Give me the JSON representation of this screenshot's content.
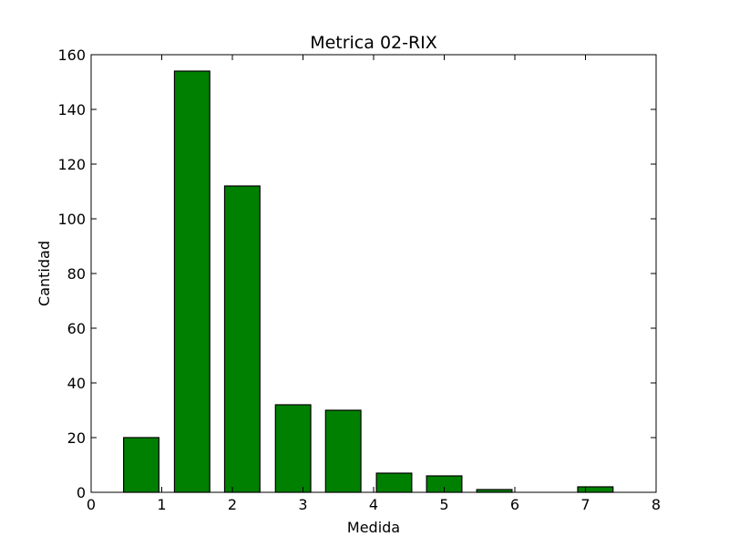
{
  "chart_data": {
    "type": "bar",
    "title": "Metrica 02-RIX",
    "xlabel": "Medida",
    "ylabel": "Cantidad",
    "xlim": [
      0,
      8
    ],
    "ylim": [
      0,
      160
    ],
    "xticks": [
      0,
      1,
      2,
      3,
      4,
      5,
      6,
      7,
      8
    ],
    "yticks": [
      0,
      20,
      40,
      60,
      80,
      100,
      120,
      140,
      160
    ],
    "bar_color": "#008000",
    "bar_edge_color": "#000000",
    "bars": [
      {
        "x_start": 0.46,
        "x_end": 0.96,
        "value": 20
      },
      {
        "x_start": 1.18,
        "x_end": 1.68,
        "value": 154
      },
      {
        "x_start": 1.89,
        "x_end": 2.39,
        "value": 112
      },
      {
        "x_start": 2.61,
        "x_end": 3.11,
        "value": 32
      },
      {
        "x_start": 3.32,
        "x_end": 3.82,
        "value": 30
      },
      {
        "x_start": 4.04,
        "x_end": 4.54,
        "value": 7
      },
      {
        "x_start": 4.75,
        "x_end": 5.25,
        "value": 6
      },
      {
        "x_start": 5.46,
        "x_end": 5.96,
        "value": 1
      },
      {
        "x_start": 6.18,
        "x_end": 6.68,
        "value": 0
      },
      {
        "x_start": 6.89,
        "x_end": 7.39,
        "value": 2
      }
    ],
    "grid": false,
    "legend": "none"
  }
}
